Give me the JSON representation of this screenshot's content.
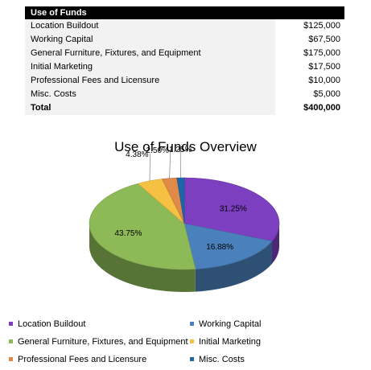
{
  "table": {
    "header": "Use of Funds",
    "rows": [
      {
        "label": "Location Buildout",
        "value": "$125,000"
      },
      {
        "label": "Working Capital",
        "value": "$67,500"
      },
      {
        "label": "General Furniture, Fixtures, and Equipment",
        "value": "$175,000"
      },
      {
        "label": "Initial Marketing",
        "value": "$17,500"
      },
      {
        "label": "Professional Fees and Licensure",
        "value": "$10,000"
      },
      {
        "label": "Misc. Costs",
        "value": "$5,000"
      }
    ],
    "total": {
      "label": "Total",
      "value": "$400,000"
    }
  },
  "chart_data": {
    "type": "pie",
    "title": "Use of Funds Overview",
    "categories": [
      "Location Buildout",
      "Working Capital",
      "General Furniture, Fixtures, and Equipment",
      "Initial Marketing",
      "Professional Fees and Licensure",
      "Misc. Costs"
    ],
    "values": [
      125000,
      67500,
      175000,
      17500,
      10000,
      5000
    ],
    "labels": [
      "31.25%",
      "16.88%",
      "43.75%",
      "4.38%",
      "2.50%",
      "1.25%"
    ],
    "colors": [
      "#7b3fbf",
      "#4a81bd",
      "#8dba57",
      "#f6c142",
      "#e08a4a",
      "#1d67a8"
    ],
    "legend_position": "bottom"
  }
}
